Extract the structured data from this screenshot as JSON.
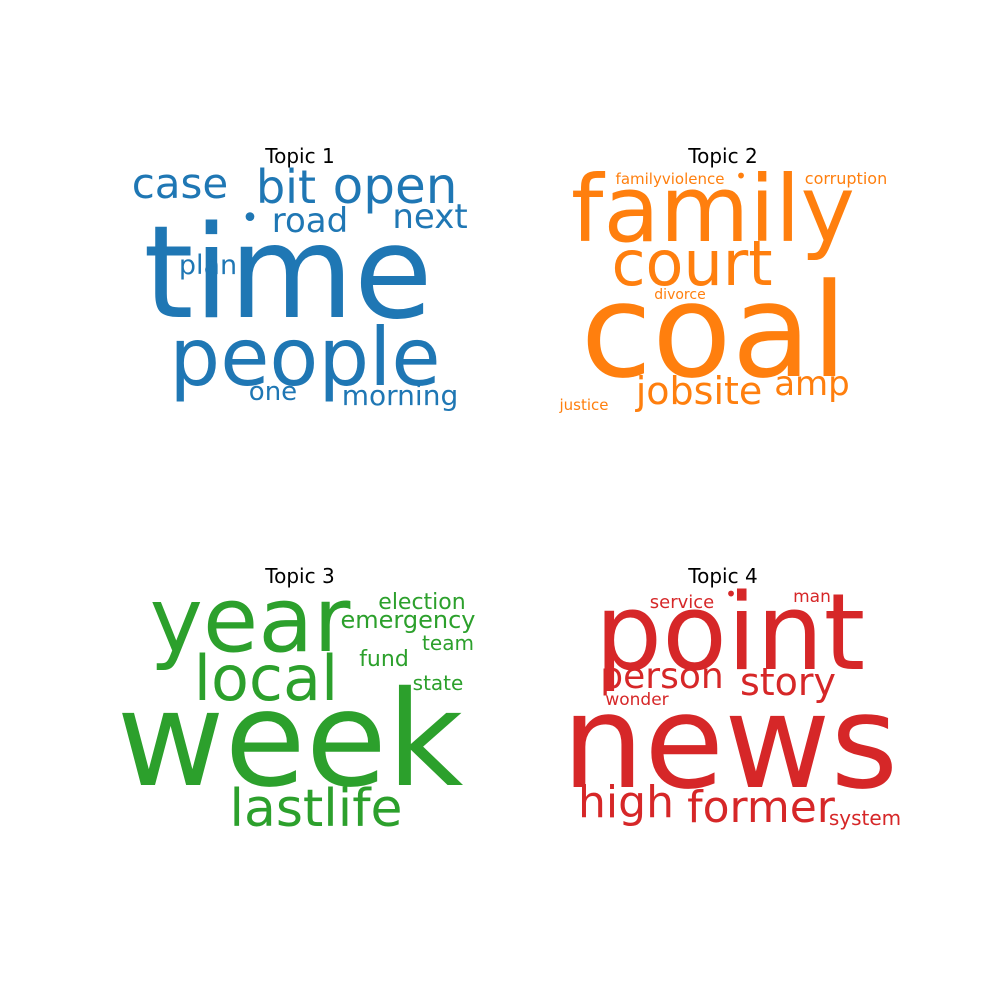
{
  "chart_data": [
    {
      "type": "wordcloud",
      "title": "Topic 1",
      "color": "#1f77b4",
      "words": [
        {
          "text": "time",
          "weight": 1.0
        },
        {
          "text": "people",
          "weight": 0.78
        },
        {
          "text": "open",
          "weight": 0.5
        },
        {
          "text": "bit",
          "weight": 0.46
        },
        {
          "text": "case",
          "weight": 0.42
        },
        {
          "text": "next",
          "weight": 0.34
        },
        {
          "text": "road",
          "weight": 0.34
        },
        {
          "text": "morning",
          "weight": 0.28
        },
        {
          "text": "plan",
          "weight": 0.27
        },
        {
          "text": "one",
          "weight": 0.26
        },
        {
          "text": "•",
          "weight": 0.3
        }
      ]
    },
    {
      "type": "wordcloud",
      "title": "Topic 2",
      "color": "#ff7f0e",
      "words": [
        {
          "text": "coal",
          "weight": 1.0
        },
        {
          "text": "family",
          "weight": 0.7
        },
        {
          "text": "court",
          "weight": 0.5
        },
        {
          "text": "jobsite",
          "weight": 0.32
        },
        {
          "text": "amp",
          "weight": 0.3
        },
        {
          "text": "corruption",
          "weight": 0.16
        },
        {
          "text": "familyviolence",
          "weight": 0.15
        },
        {
          "text": "divorce",
          "weight": 0.14
        },
        {
          "text": "justice",
          "weight": 0.14
        },
        {
          "text": "•",
          "weight": 0.2
        }
      ]
    },
    {
      "type": "wordcloud",
      "title": "Topic 3",
      "color": "#2ca02c",
      "words": [
        {
          "text": "week",
          "weight": 1.0
        },
        {
          "text": "year",
          "weight": 0.78
        },
        {
          "text": "local",
          "weight": 0.52
        },
        {
          "text": "lastlife",
          "weight": 0.48
        },
        {
          "text": "election",
          "weight": 0.22
        },
        {
          "text": "emergency",
          "weight": 0.22
        },
        {
          "text": "fund",
          "weight": 0.22
        },
        {
          "text": "team",
          "weight": 0.2
        },
        {
          "text": "state",
          "weight": 0.2
        }
      ]
    },
    {
      "type": "wordcloud",
      "title": "Topic 4",
      "color": "#d62728",
      "words": [
        {
          "text": "news",
          "weight": 1.0
        },
        {
          "text": "point",
          "weight": 0.86
        },
        {
          "text": "former",
          "weight": 0.38
        },
        {
          "text": "high",
          "weight": 0.38
        },
        {
          "text": "story",
          "weight": 0.33
        },
        {
          "text": "person",
          "weight": 0.31
        },
        {
          "text": "system",
          "weight": 0.2
        },
        {
          "text": "service",
          "weight": 0.19
        },
        {
          "text": "wonder",
          "weight": 0.18
        },
        {
          "text": "man",
          "weight": 0.17
        },
        {
          "text": "•",
          "weight": 0.2
        }
      ]
    }
  ]
}
